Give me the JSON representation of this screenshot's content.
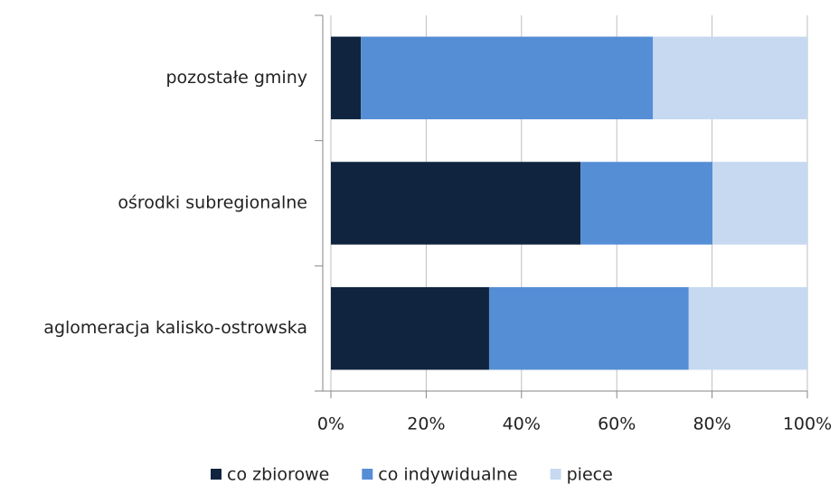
{
  "chart_data": {
    "type": "stacked-bar-horizontal",
    "categories": [
      "pozostałe gminy",
      "ośrodki subregionalne",
      "aglomeracja kalisko-ostrowska"
    ],
    "series": [
      {
        "name": "co zbiorowe",
        "color": "#10243f",
        "values": [
          6.3,
          52.4,
          33.2
        ]
      },
      {
        "name": "co indywidualne",
        "color": "#558ed5",
        "values": [
          61.3,
          27.7,
          41.9
        ]
      },
      {
        "name": "piece",
        "color": "#c6d9f1",
        "values": [
          32.4,
          19.9,
          24.9
        ]
      }
    ],
    "xlim": [
      0,
      100
    ],
    "xticks": [
      {
        "value": 0,
        "label": "0%"
      },
      {
        "value": 20,
        "label": "20%"
      },
      {
        "value": 40,
        "label": "40%"
      },
      {
        "value": 60,
        "label": "60%"
      },
      {
        "value": 80,
        "label": "80%"
      },
      {
        "value": 100,
        "label": "100%"
      }
    ],
    "grid": true,
    "legend": "bottom"
  }
}
